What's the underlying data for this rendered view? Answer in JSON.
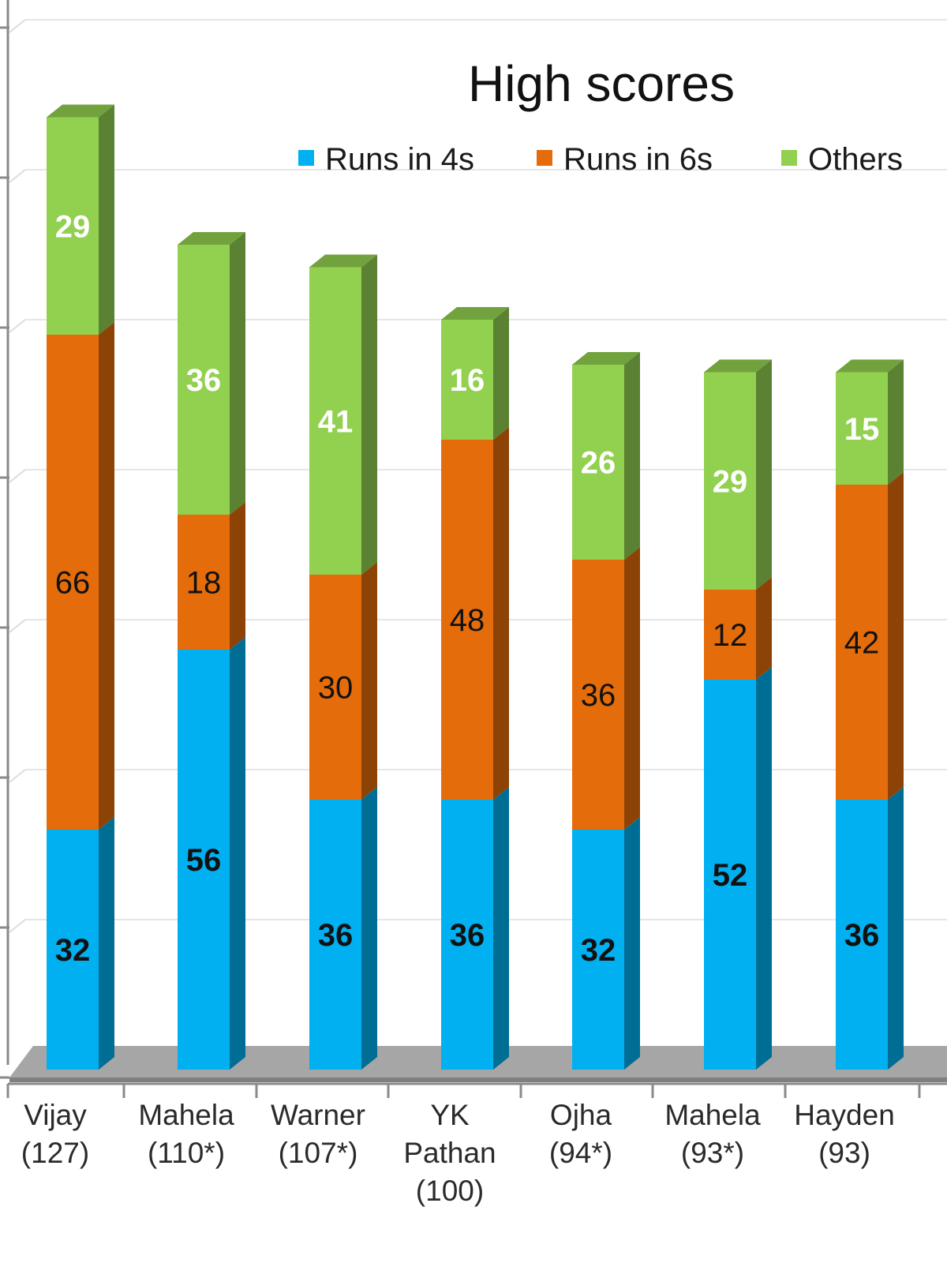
{
  "chart_data": {
    "type": "bar",
    "stacked": true,
    "three_d": true,
    "title": "High scores",
    "categories": [
      [
        "Vijay",
        "(127)"
      ],
      [
        "Mahela",
        "(110*)"
      ],
      [
        "Warner",
        "(107*)"
      ],
      [
        "YK",
        "Pathan",
        "(100)"
      ],
      [
        "Ojha",
        "(94*)"
      ],
      [
        "Mahela",
        "(93*)"
      ],
      [
        "Hayden",
        "(93)"
      ]
    ],
    "series": [
      {
        "name": "Runs in 4s",
        "color": "#00b0f0",
        "values": [
          32,
          56,
          36,
          36,
          32,
          52,
          36
        ]
      },
      {
        "name": "Runs in 6s",
        "color": "#e46c0a",
        "values": [
          66,
          18,
          30,
          48,
          36,
          12,
          42
        ]
      },
      {
        "name": "Others",
        "color": "#92d050",
        "values": [
          29,
          36,
          41,
          16,
          26,
          29,
          15
        ]
      }
    ],
    "label_colors": [
      "#111111",
      "#111111",
      "#ffffff"
    ],
    "ylim": [
      0,
      140
    ],
    "grid": true,
    "legend_position": "top-right"
  }
}
